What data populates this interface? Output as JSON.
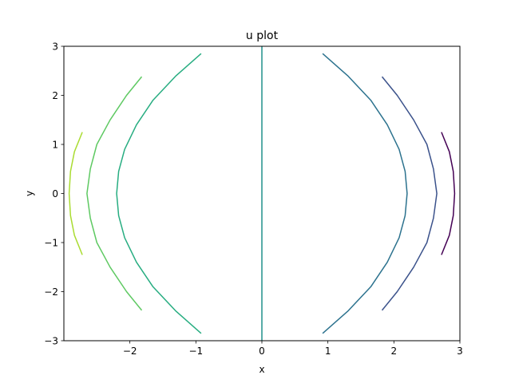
{
  "chart_data": {
    "type": "line",
    "title": "u plot",
    "xlabel": "x",
    "ylabel": "y",
    "xlim": [
      -3,
      3
    ],
    "ylim": [
      -3,
      3
    ],
    "x_ticks": [
      -2,
      -1,
      0,
      1,
      2,
      3
    ],
    "x_tick_labels": [
      "−2",
      "−1",
      "0",
      "1",
      "2",
      "3"
    ],
    "y_ticks": [
      -3,
      -2,
      -1,
      0,
      1,
      2,
      3
    ],
    "y_tick_labels": [
      "−3",
      "−2",
      "−1",
      "0",
      "1",
      "2",
      "3"
    ],
    "grid": false,
    "legend": "none",
    "contours": [
      {
        "color": "#440154",
        "points": [
          [
            2.72,
            1.25
          ],
          [
            2.84,
            0.85
          ],
          [
            2.9,
            0.45
          ],
          [
            2.92,
            0.0
          ],
          [
            2.9,
            -0.45
          ],
          [
            2.84,
            -0.85
          ],
          [
            2.72,
            -1.25
          ]
        ]
      },
      {
        "color": "#3b528b",
        "points": [
          [
            1.82,
            2.38
          ],
          [
            2.05,
            2.0
          ],
          [
            2.3,
            1.5
          ],
          [
            2.5,
            1.0
          ],
          [
            2.6,
            0.5
          ],
          [
            2.65,
            0.0
          ],
          [
            2.6,
            -0.5
          ],
          [
            2.5,
            -1.0
          ],
          [
            2.3,
            -1.5
          ],
          [
            2.05,
            -2.0
          ],
          [
            1.82,
            -2.38
          ]
        ]
      },
      {
        "color": "#2c728e",
        "points": [
          [
            0.92,
            2.85
          ],
          [
            1.3,
            2.4
          ],
          [
            1.65,
            1.9
          ],
          [
            1.9,
            1.4
          ],
          [
            2.08,
            0.9
          ],
          [
            2.17,
            0.45
          ],
          [
            2.2,
            0.0
          ],
          [
            2.17,
            -0.45
          ],
          [
            2.08,
            -0.9
          ],
          [
            1.9,
            -1.4
          ],
          [
            1.65,
            -1.9
          ],
          [
            1.3,
            -2.4
          ],
          [
            0.92,
            -2.85
          ]
        ]
      },
      {
        "color": "#21918c",
        "points": [
          [
            0.0,
            3.0
          ],
          [
            0.0,
            -3.0
          ]
        ]
      },
      {
        "color": "#27ad81",
        "points": [
          [
            -0.92,
            2.85
          ],
          [
            -1.3,
            2.4
          ],
          [
            -1.65,
            1.9
          ],
          [
            -1.9,
            1.4
          ],
          [
            -2.08,
            0.9
          ],
          [
            -2.17,
            0.45
          ],
          [
            -2.2,
            0.0
          ],
          [
            -2.17,
            -0.45
          ],
          [
            -2.08,
            -0.9
          ],
          [
            -1.9,
            -1.4
          ],
          [
            -1.65,
            -1.9
          ],
          [
            -1.3,
            -2.4
          ],
          [
            -0.92,
            -2.85
          ]
        ]
      },
      {
        "color": "#5ec962",
        "points": [
          [
            -1.82,
            2.38
          ],
          [
            -2.05,
            2.0
          ],
          [
            -2.3,
            1.5
          ],
          [
            -2.5,
            1.0
          ],
          [
            -2.6,
            0.5
          ],
          [
            -2.65,
            0.0
          ],
          [
            -2.6,
            -0.5
          ],
          [
            -2.5,
            -1.0
          ],
          [
            -2.3,
            -1.5
          ],
          [
            -2.05,
            -2.0
          ],
          [
            -1.82,
            -2.38
          ]
        ]
      },
      {
        "color": "#aadc32",
        "points": [
          [
            -2.72,
            1.25
          ],
          [
            -2.84,
            0.85
          ],
          [
            -2.9,
            0.45
          ],
          [
            -2.92,
            0.0
          ],
          [
            -2.9,
            -0.45
          ],
          [
            -2.84,
            -0.85
          ],
          [
            -2.72,
            -1.25
          ]
        ]
      }
    ]
  }
}
